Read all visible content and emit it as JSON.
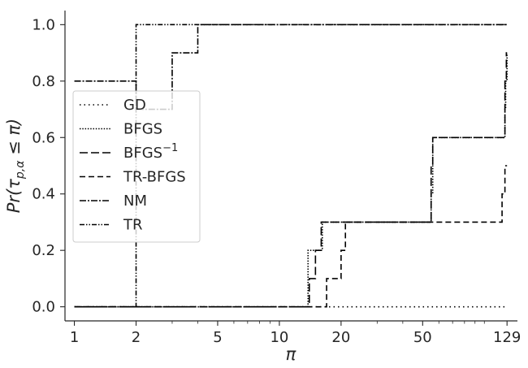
{
  "chart_data": {
    "type": "line",
    "title": "",
    "xlabel": "π",
    "ylabel": "Pr(τ_{p,α} ≤ π)",
    "xscale": "log",
    "xlim": [
      0.9,
      145
    ],
    "ylim": [
      -0.05,
      1.05
    ],
    "xticks": [
      1,
      2,
      5,
      10,
      20,
      50,
      129
    ],
    "xtick_labels": [
      "1",
      "2",
      "5",
      "10",
      "20",
      "50",
      "129"
    ],
    "yticks": [
      0.0,
      0.2,
      0.4,
      0.6,
      0.8,
      1.0
    ],
    "ytick_labels": [
      "0.0",
      "0.2",
      "0.4",
      "0.6",
      "0.8",
      "1.0"
    ],
    "grid": false,
    "legend_position": "center-left",
    "step": "post",
    "series": [
      {
        "name": "GD",
        "dash": "dotted",
        "x": [
          1,
          17,
          129
        ],
        "y": [
          0.0,
          0.0,
          0.0
        ]
      },
      {
        "name": "BFGS",
        "dash": "densely-dotted",
        "x": [
          1,
          13.8,
          14.5,
          15.3,
          16.2,
          55,
          56,
          125,
          126,
          127,
          129
        ],
        "y": [
          0.0,
          0.2,
          0.2,
          0.2,
          0.3,
          0.4,
          0.6,
          0.6,
          0.7,
          0.8,
          0.9
        ]
      },
      {
        "name": "BFGS^{-1}",
        "name_base": "BFGS",
        "name_sup": "−1",
        "dash": "long-dash",
        "x": [
          1,
          14,
          15,
          16,
          55,
          56,
          126,
          128,
          129
        ],
        "y": [
          0.0,
          0.1,
          0.2,
          0.3,
          0.5,
          0.6,
          0.8,
          0.9,
          0.9
        ]
      },
      {
        "name": "TR-BFGS",
        "dash": "dashed",
        "x": [
          1,
          17,
          20,
          21,
          118,
          122,
          126,
          129
        ],
        "y": [
          0.0,
          0.1,
          0.2,
          0.3,
          0.3,
          0.4,
          0.5,
          0.5
        ]
      },
      {
        "name": "NM",
        "dash": "dash-dot",
        "x": [
          1,
          2,
          3,
          4,
          129
        ],
        "y": [
          0.8,
          0.7,
          0.9,
          1.0,
          1.0
        ]
      },
      {
        "name": "TR",
        "dash": "dash-dot-dot",
        "x": [
          1,
          2,
          129
        ],
        "y": [
          0.0,
          1.0,
          1.0
        ]
      }
    ]
  }
}
